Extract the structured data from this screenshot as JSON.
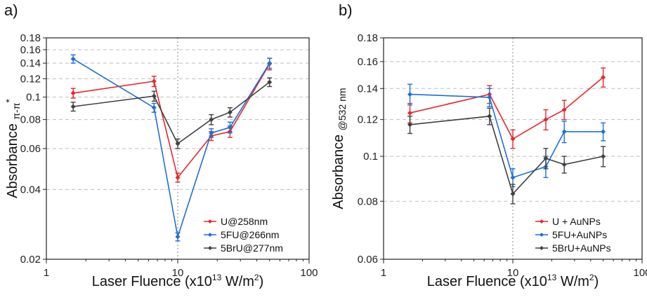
{
  "colors": {
    "red": "#e8262c",
    "blue": "#1f6fd6",
    "dark": "#404040"
  },
  "chart_data": [
    {
      "panel_label": "a)",
      "type": "line",
      "xscale": "log",
      "yscale": "log",
      "xlim": [
        1,
        100
      ],
      "ylim": [
        0.02,
        0.18
      ],
      "xticks": [
        1,
        10,
        100
      ],
      "xtick_labels": [
        "1",
        "10",
        "100"
      ],
      "yticks": [
        0.02,
        0.04,
        0.06,
        0.08,
        0.1,
        0.12,
        0.14,
        0.16,
        0.18
      ],
      "ytick_labels": [
        "0.02",
        "0.04",
        "0.06",
        "0.08",
        "0.1",
        "0.12",
        "0.14",
        "0.16",
        "0.18"
      ],
      "grid": "horizontal dashed",
      "vline": 10,
      "xlabel_main": "Laser Fluence (x10",
      "xlabel_sup1": "13",
      "xlabel_mid": " W/m",
      "xlabel_sup2": "2",
      "xlabel_end": ")",
      "ylabel_main": "Absorbance ",
      "ylabel_sub": "π-π",
      "ylabel_sup": "*",
      "legend_position": "bottom-right",
      "x": [
        1.6,
        6.6,
        10,
        18,
        25,
        50
      ],
      "series": [
        {
          "name": "U@258nm",
          "color": "red",
          "values": [
            0.104,
            0.117,
            0.045,
            0.068,
            0.071,
            0.139
          ],
          "errors": [
            0.005,
            0.006,
            0.002,
            0.003,
            0.004,
            0.008
          ]
        },
        {
          "name": "5FU@266nm",
          "color": "blue",
          "values": [
            0.146,
            0.09,
            0.025,
            0.07,
            0.074,
            0.14
          ],
          "errors": [
            0.006,
            0.004,
            0.001,
            0.003,
            0.004,
            0.007
          ]
        },
        {
          "name": "5BrU@277nm",
          "color": "dark",
          "values": [
            0.091,
            0.101,
            0.063,
            0.08,
            0.086,
            0.116
          ],
          "errors": [
            0.004,
            0.005,
            0.003,
            0.004,
            0.004,
            0.005
          ]
        }
      ]
    },
    {
      "panel_label": "b)",
      "type": "line",
      "xscale": "log",
      "yscale": "log",
      "xlim": [
        1,
        100
      ],
      "ylim": [
        0.06,
        0.18
      ],
      "xticks": [
        1,
        10,
        100
      ],
      "xtick_labels": [
        "1",
        "10",
        "100"
      ],
      "yticks": [
        0.06,
        0.08,
        0.1,
        0.12,
        0.14,
        0.16,
        0.18
      ],
      "ytick_labels": [
        "0.06",
        "0.08",
        "0.1",
        "0.12",
        "0.14",
        "0.16",
        "0.18"
      ],
      "grid": "horizontal dashed",
      "vline": 10,
      "xlabel_main": "Laser Fluence (x10",
      "xlabel_sup1": "13",
      "xlabel_mid": " W/m",
      "xlabel_sup2": "2",
      "xlabel_end": ")",
      "ylabel_main": "Absorbance ",
      "ylabel_sub": "@532 nm",
      "ylabel_sup": "",
      "legend_position": "bottom-right",
      "x": [
        1.6,
        6.6,
        10,
        18,
        25,
        50
      ],
      "series": [
        {
          "name": "U + AuNPs",
          "color": "red",
          "values": [
            0.124,
            0.136,
            0.109,
            0.12,
            0.126,
            0.148
          ],
          "errors": [
            0.006,
            0.006,
            0.005,
            0.006,
            0.006,
            0.007
          ]
        },
        {
          "name": "5FU+AuNPs",
          "color": "blue",
          "values": [
            0.136,
            0.134,
            0.09,
            0.095,
            0.113,
            0.113
          ],
          "errors": [
            0.007,
            0.006,
            0.004,
            0.005,
            0.006,
            0.005
          ]
        },
        {
          "name": "5BrU+AuNPs",
          "color": "dark",
          "values": [
            0.117,
            0.122,
            0.083,
            0.099,
            0.096,
            0.1
          ],
          "errors": [
            0.005,
            0.005,
            0.004,
            0.005,
            0.004,
            0.005
          ]
        }
      ]
    }
  ]
}
